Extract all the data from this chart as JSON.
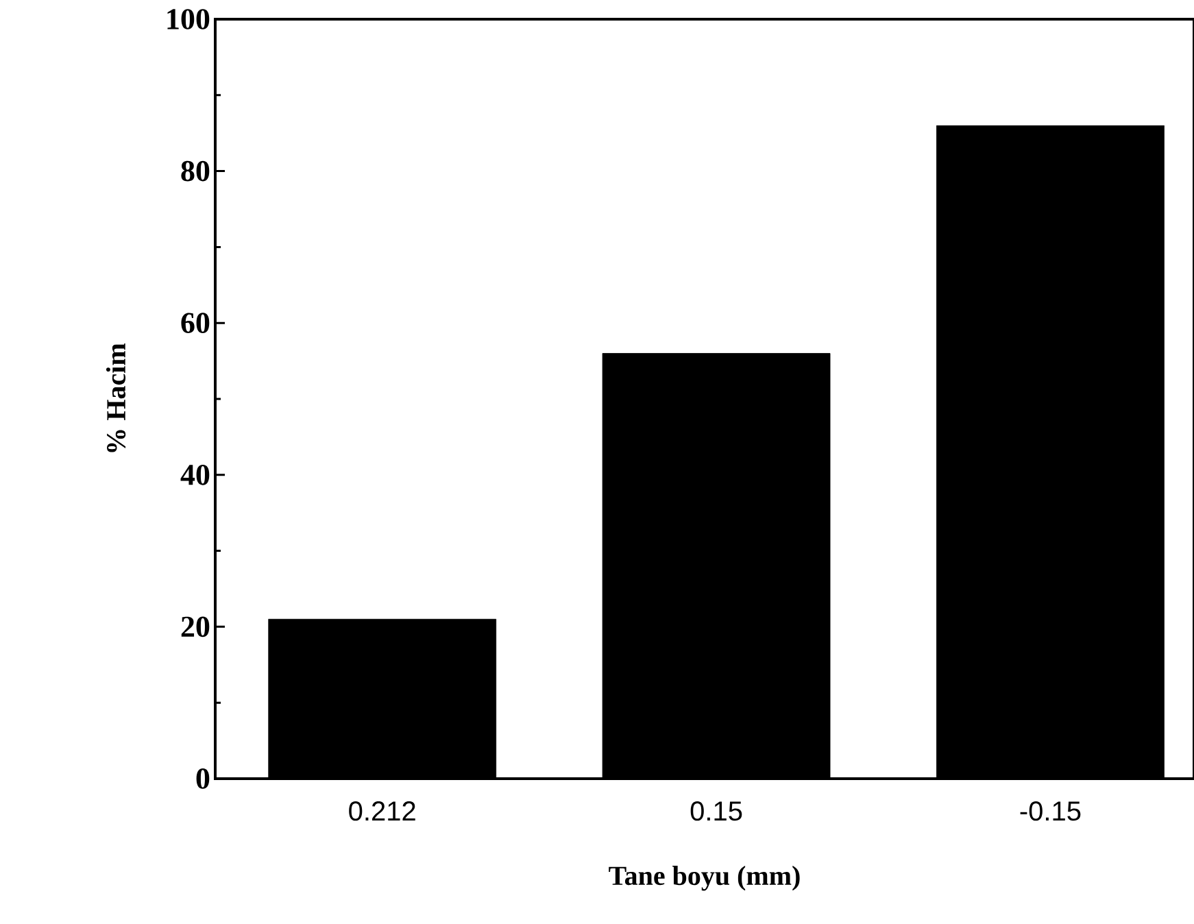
{
  "chart_data": {
    "type": "bar",
    "xlabel": "Tane boyu (mm)",
    "ylabel": "% Hacim",
    "categories": [
      "0.212",
      "0.15",
      "-0.15"
    ],
    "values": [
      21,
      56,
      86
    ],
    "color": "#000000",
    "ylim": [
      0,
      100
    ],
    "yticks": [
      0,
      20,
      40,
      60,
      80,
      100
    ],
    "grid": false
  }
}
